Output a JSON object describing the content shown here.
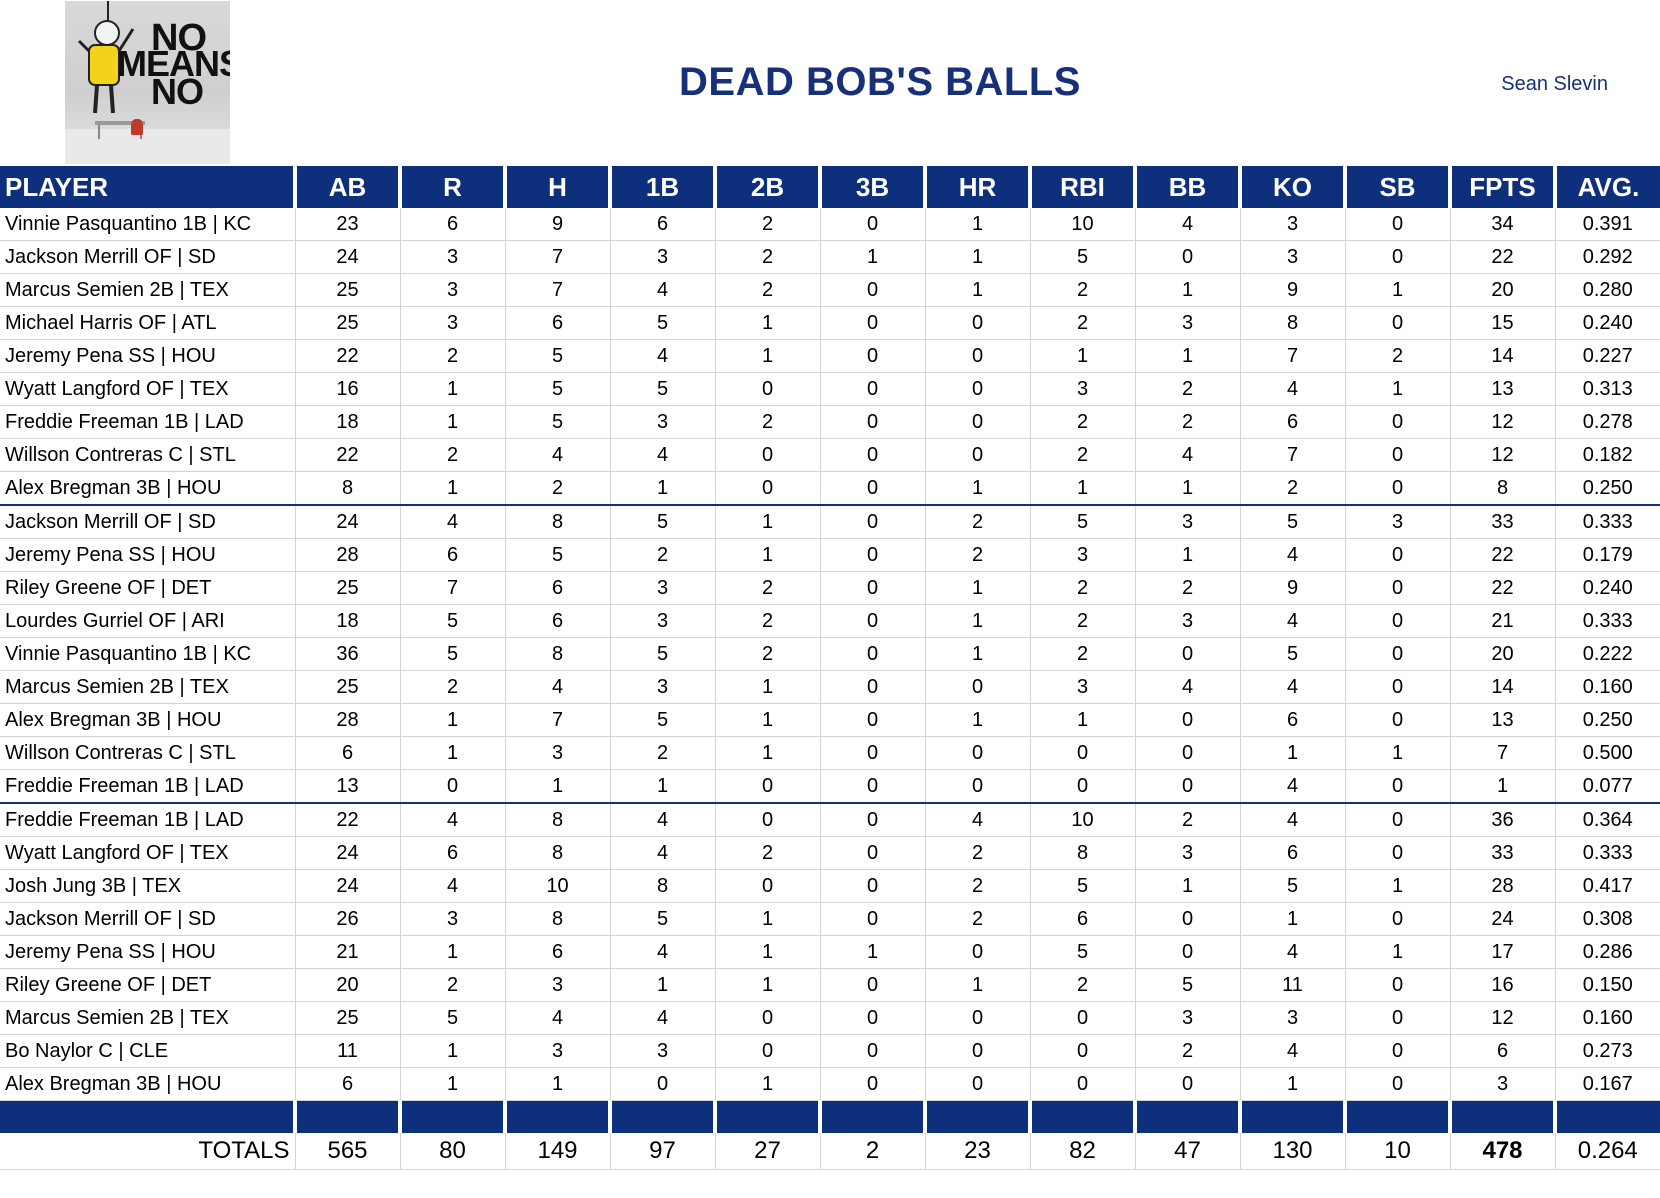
{
  "header": {
    "title": "DEAD BOB'S BALLS",
    "owner": "Sean Slevin",
    "logo_text": [
      "NO",
      "MEANS",
      "NO"
    ]
  },
  "columns": [
    "PLAYER",
    "AB",
    "R",
    "H",
    "1B",
    "2B",
    "3B",
    "HR",
    "RBI",
    "BB",
    "KO",
    "SB",
    "FPTS",
    "AVG."
  ],
  "rows": [
    [
      "Vinnie Pasquantino 1B | KC",
      "23",
      "6",
      "9",
      "6",
      "2",
      "0",
      "1",
      "10",
      "4",
      "3",
      "0",
      "34",
      "0.391"
    ],
    [
      "Jackson Merrill OF | SD",
      "24",
      "3",
      "7",
      "3",
      "2",
      "1",
      "1",
      "5",
      "0",
      "3",
      "0",
      "22",
      "0.292"
    ],
    [
      "Marcus Semien 2B | TEX",
      "25",
      "3",
      "7",
      "4",
      "2",
      "0",
      "1",
      "2",
      "1",
      "9",
      "1",
      "20",
      "0.280"
    ],
    [
      "Michael Harris OF | ATL",
      "25",
      "3",
      "6",
      "5",
      "1",
      "0",
      "0",
      "2",
      "3",
      "8",
      "0",
      "15",
      "0.240"
    ],
    [
      "Jeremy Pena SS | HOU",
      "22",
      "2",
      "5",
      "4",
      "1",
      "0",
      "0",
      "1",
      "1",
      "7",
      "2",
      "14",
      "0.227"
    ],
    [
      "Wyatt Langford OF | TEX",
      "16",
      "1",
      "5",
      "5",
      "0",
      "0",
      "0",
      "3",
      "2",
      "4",
      "1",
      "13",
      "0.313"
    ],
    [
      "Freddie Freeman 1B | LAD",
      "18",
      "1",
      "5",
      "3",
      "2",
      "0",
      "0",
      "2",
      "2",
      "6",
      "0",
      "12",
      "0.278"
    ],
    [
      "Willson Contreras C | STL",
      "22",
      "2",
      "4",
      "4",
      "0",
      "0",
      "0",
      "2",
      "4",
      "7",
      "0",
      "12",
      "0.182"
    ],
    [
      "Alex Bregman 3B | HOU",
      "8",
      "1",
      "2",
      "1",
      "0",
      "0",
      "1",
      "1",
      "1",
      "2",
      "0",
      "8",
      "0.250"
    ],
    [
      "Jackson Merrill OF | SD",
      "24",
      "4",
      "8",
      "5",
      "1",
      "0",
      "2",
      "5",
      "3",
      "5",
      "3",
      "33",
      "0.333"
    ],
    [
      "Jeremy Pena SS | HOU",
      "28",
      "6",
      "5",
      "2",
      "1",
      "0",
      "2",
      "3",
      "1",
      "4",
      "0",
      "22",
      "0.179"
    ],
    [
      "Riley Greene OF | DET",
      "25",
      "7",
      "6",
      "3",
      "2",
      "0",
      "1",
      "2",
      "2",
      "9",
      "0",
      "22",
      "0.240"
    ],
    [
      "Lourdes Gurriel OF | ARI",
      "18",
      "5",
      "6",
      "3",
      "2",
      "0",
      "1",
      "2",
      "3",
      "4",
      "0",
      "21",
      "0.333"
    ],
    [
      "Vinnie Pasquantino 1B | KC",
      "36",
      "5",
      "8",
      "5",
      "2",
      "0",
      "1",
      "2",
      "0",
      "5",
      "0",
      "20",
      "0.222"
    ],
    [
      "Marcus Semien 2B | TEX",
      "25",
      "2",
      "4",
      "3",
      "1",
      "0",
      "0",
      "3",
      "4",
      "4",
      "0",
      "14",
      "0.160"
    ],
    [
      "Alex Bregman 3B | HOU",
      "28",
      "1",
      "7",
      "5",
      "1",
      "0",
      "1",
      "1",
      "0",
      "6",
      "0",
      "13",
      "0.250"
    ],
    [
      "Willson Contreras C | STL",
      "6",
      "1",
      "3",
      "2",
      "1",
      "0",
      "0",
      "0",
      "0",
      "1",
      "1",
      "7",
      "0.500"
    ],
    [
      "Freddie Freeman 1B | LAD",
      "13",
      "0",
      "1",
      "1",
      "0",
      "0",
      "0",
      "0",
      "0",
      "4",
      "0",
      "1",
      "0.077"
    ],
    [
      "Freddie Freeman 1B | LAD",
      "22",
      "4",
      "8",
      "4",
      "0",
      "0",
      "4",
      "10",
      "2",
      "4",
      "0",
      "36",
      "0.364"
    ],
    [
      "Wyatt Langford OF | TEX",
      "24",
      "6",
      "8",
      "4",
      "2",
      "0",
      "2",
      "8",
      "3",
      "6",
      "0",
      "33",
      "0.333"
    ],
    [
      "Josh Jung 3B | TEX",
      "24",
      "4",
      "10",
      "8",
      "0",
      "0",
      "2",
      "5",
      "1",
      "5",
      "1",
      "28",
      "0.417"
    ],
    [
      "Jackson Merrill OF | SD",
      "26",
      "3",
      "8",
      "5",
      "1",
      "0",
      "2",
      "6",
      "0",
      "1",
      "0",
      "24",
      "0.308"
    ],
    [
      "Jeremy Pena SS | HOU",
      "21",
      "1",
      "6",
      "4",
      "1",
      "1",
      "0",
      "5",
      "0",
      "4",
      "1",
      "17",
      "0.286"
    ],
    [
      "Riley Greene OF | DET",
      "20",
      "2",
      "3",
      "1",
      "1",
      "0",
      "1",
      "2",
      "5",
      "11",
      "0",
      "16",
      "0.150"
    ],
    [
      "Marcus Semien 2B | TEX",
      "25",
      "5",
      "4",
      "4",
      "0",
      "0",
      "0",
      "0",
      "3",
      "3",
      "0",
      "12",
      "0.160"
    ],
    [
      "Bo Naylor C | CLE",
      "11",
      "1",
      "3",
      "3",
      "0",
      "0",
      "0",
      "0",
      "2",
      "4",
      "0",
      "6",
      "0.273"
    ],
    [
      "Alex Bregman 3B | HOU",
      "6",
      "1",
      "1",
      "0",
      "1",
      "0",
      "0",
      "0",
      "0",
      "1",
      "0",
      "3",
      "0.167"
    ]
  ],
  "group_ends": [
    8,
    17
  ],
  "totals": [
    "TOTALS",
    "565",
    "80",
    "149",
    "97",
    "27",
    "2",
    "23",
    "82",
    "47",
    "130",
    "10",
    "478",
    "0.264"
  ],
  "colors": {
    "header_bg": "#0e2f7b",
    "title": "#17307a"
  }
}
